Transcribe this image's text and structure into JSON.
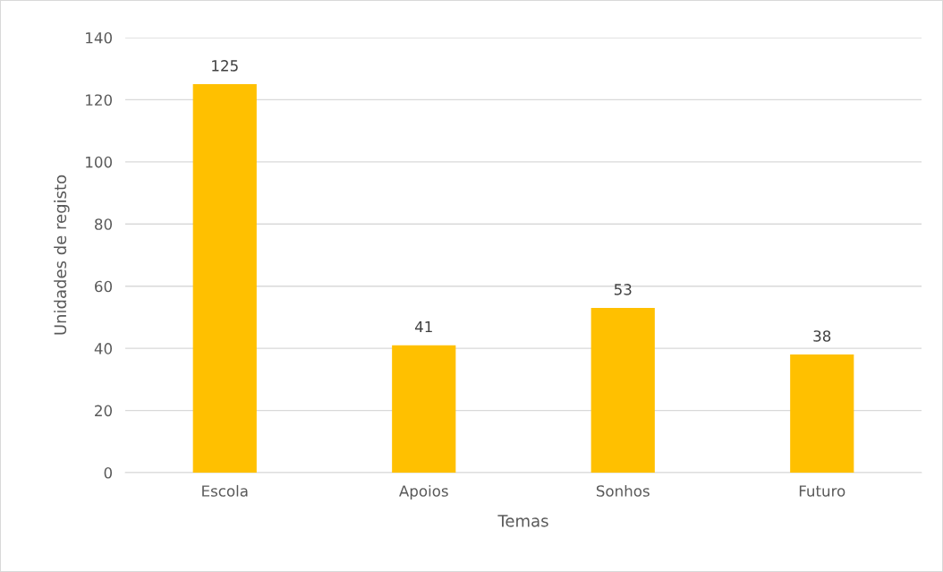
{
  "chart_data": {
    "type": "bar",
    "xlabel": "Temas",
    "ylabel": "Unidades de registo",
    "categories": [
      "Escola",
      "Apoios",
      "Sonhos",
      "Futuro"
    ],
    "values": [
      125,
      41,
      53,
      38
    ],
    "color": "#ffc000",
    "ylim": [
      0,
      140
    ],
    "yticks": [
      0,
      20,
      40,
      60,
      80,
      100,
      120,
      140
    ],
    "grid": "y",
    "data_labels": true
  }
}
